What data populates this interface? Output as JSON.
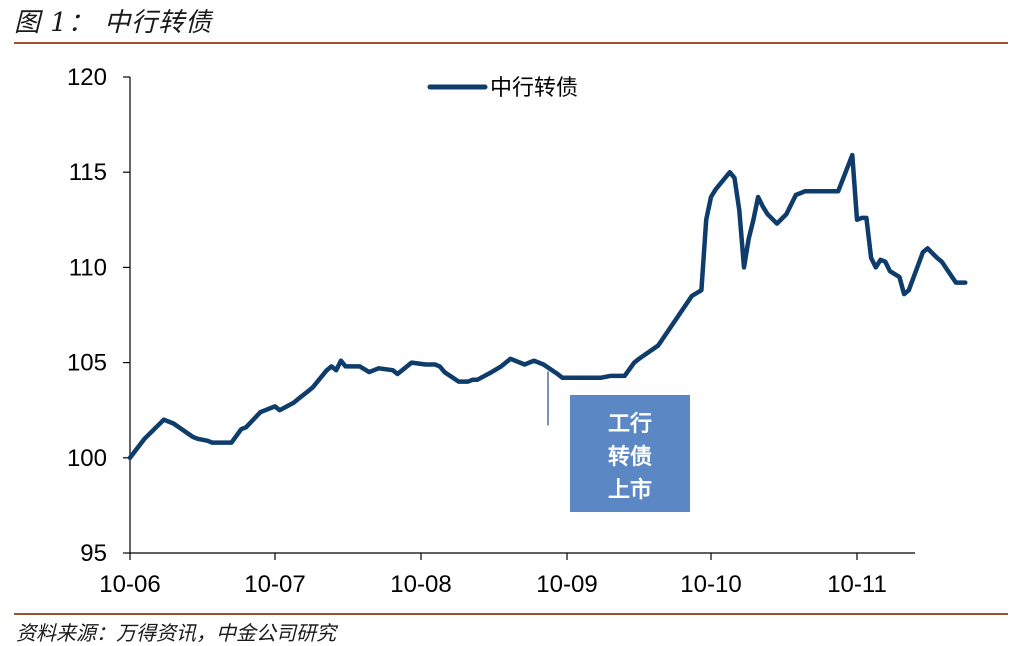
{
  "header": {
    "title": "图 1： 中行转债"
  },
  "footer": {
    "source": "资料来源：万得资讯，中金公司研究"
  },
  "colors": {
    "line": "#0e3d6b",
    "annotation_box": "#5b87c5",
    "rule": "#a0522d"
  },
  "annotation": {
    "lines": [
      "工行",
      "转债",
      "上市"
    ],
    "marker_date": "2010-09-01"
  },
  "chart_data": {
    "type": "line",
    "ylim": [
      95,
      120
    ],
    "yticks": [
      "95",
      "100",
      "105",
      "110",
      "115",
      "120"
    ],
    "xticks": [
      "10-06",
      "10-07",
      "10-08",
      "10-09",
      "10-10",
      "10-11"
    ],
    "legend": "top-center",
    "grid": false,
    "series": [
      {
        "name": "中行转债",
        "x": [
          "2010-06-01",
          "2010-06-04",
          "2010-06-08",
          "2010-06-09",
          "2010-06-10",
          "2010-06-14",
          "2010-06-15",
          "2010-06-17",
          "2010-06-18",
          "2010-06-22",
          "2010-06-24",
          "2010-06-25",
          "2010-06-28",
          "2010-06-29",
          "2010-07-01",
          "2010-07-02",
          "2010-07-05",
          "2010-07-06",
          "2010-07-08",
          "2010-07-09",
          "2010-07-12",
          "2010-07-13",
          "2010-07-14",
          "2010-07-15",
          "2010-07-16",
          "2010-07-19",
          "2010-07-21",
          "2010-07-23",
          "2010-07-26",
          "2010-07-27",
          "2010-07-28",
          "2010-07-29",
          "2010-07-30",
          "2010-08-02",
          "2010-08-04",
          "2010-08-05",
          "2010-08-06",
          "2010-08-09",
          "2010-08-11",
          "2010-08-12",
          "2010-08-13",
          "2010-08-16",
          "2010-08-18",
          "2010-08-20",
          "2010-08-23",
          "2010-08-25",
          "2010-08-27",
          "2010-08-30",
          "2010-08-31",
          "2010-09-02",
          "2010-09-03",
          "2010-09-06",
          "2010-09-08",
          "2010-09-10",
          "2010-09-13",
          "2010-09-15",
          "2010-09-16",
          "2010-09-20",
          "2010-09-27",
          "2010-09-29",
          "2010-09-30",
          "2010-10-01",
          "2010-10-02",
          "2010-10-05",
          "2010-10-06",
          "2010-10-07",
          "2010-10-08",
          "2010-10-09",
          "2010-10-10",
          "2010-10-11",
          "2010-10-12",
          "2010-10-13",
          "2010-10-15",
          "2010-10-17",
          "2010-10-19",
          "2010-10-21",
          "2010-10-22",
          "2010-10-24",
          "2010-10-25",
          "2010-10-28",
          "2010-10-31",
          "2010-11-01",
          "2010-11-02",
          "2010-11-03",
          "2010-11-04",
          "2010-11-05",
          "2010-11-06",
          "2010-11-07",
          "2010-11-08",
          "2010-11-10",
          "2010-11-11",
          "2010-11-12",
          "2010-11-15",
          "2010-11-16",
          "2010-11-18",
          "2010-11-19",
          "2010-11-22",
          "2010-11-24"
        ],
        "y": [
          100.0,
          101.0,
          102.0,
          101.9,
          101.8,
          101.1,
          101.0,
          100.9,
          100.8,
          100.8,
          101.5,
          101.6,
          102.4,
          102.5,
          102.7,
          102.5,
          102.9,
          103.1,
          103.5,
          103.7,
          104.6,
          104.8,
          104.6,
          105.1,
          104.8,
          104.8,
          104.5,
          104.7,
          104.6,
          104.4,
          104.6,
          104.8,
          105.0,
          104.9,
          104.9,
          104.8,
          104.5,
          104.0,
          104.0,
          104.1,
          104.1,
          104.5,
          104.8,
          105.2,
          104.9,
          105.1,
          104.9,
          104.4,
          104.2,
          104.2,
          104.2,
          104.2,
          104.2,
          104.3,
          104.3,
          105.0,
          105.2,
          105.9,
          108.5,
          108.8,
          112.5,
          113.7,
          114.1,
          115.0,
          114.7,
          113.0,
          110.0,
          111.5,
          112.5,
          113.7,
          113.2,
          112.8,
          112.3,
          112.8,
          113.8,
          114.0,
          114.0,
          114.0,
          114.0,
          114.0,
          115.9,
          112.5,
          112.6,
          112.6,
          110.5,
          110.0,
          110.4,
          110.3,
          109.8,
          109.5,
          108.6,
          108.8,
          110.8,
          111.0,
          110.5,
          110.3,
          109.2,
          109.2
        ]
      }
    ]
  }
}
